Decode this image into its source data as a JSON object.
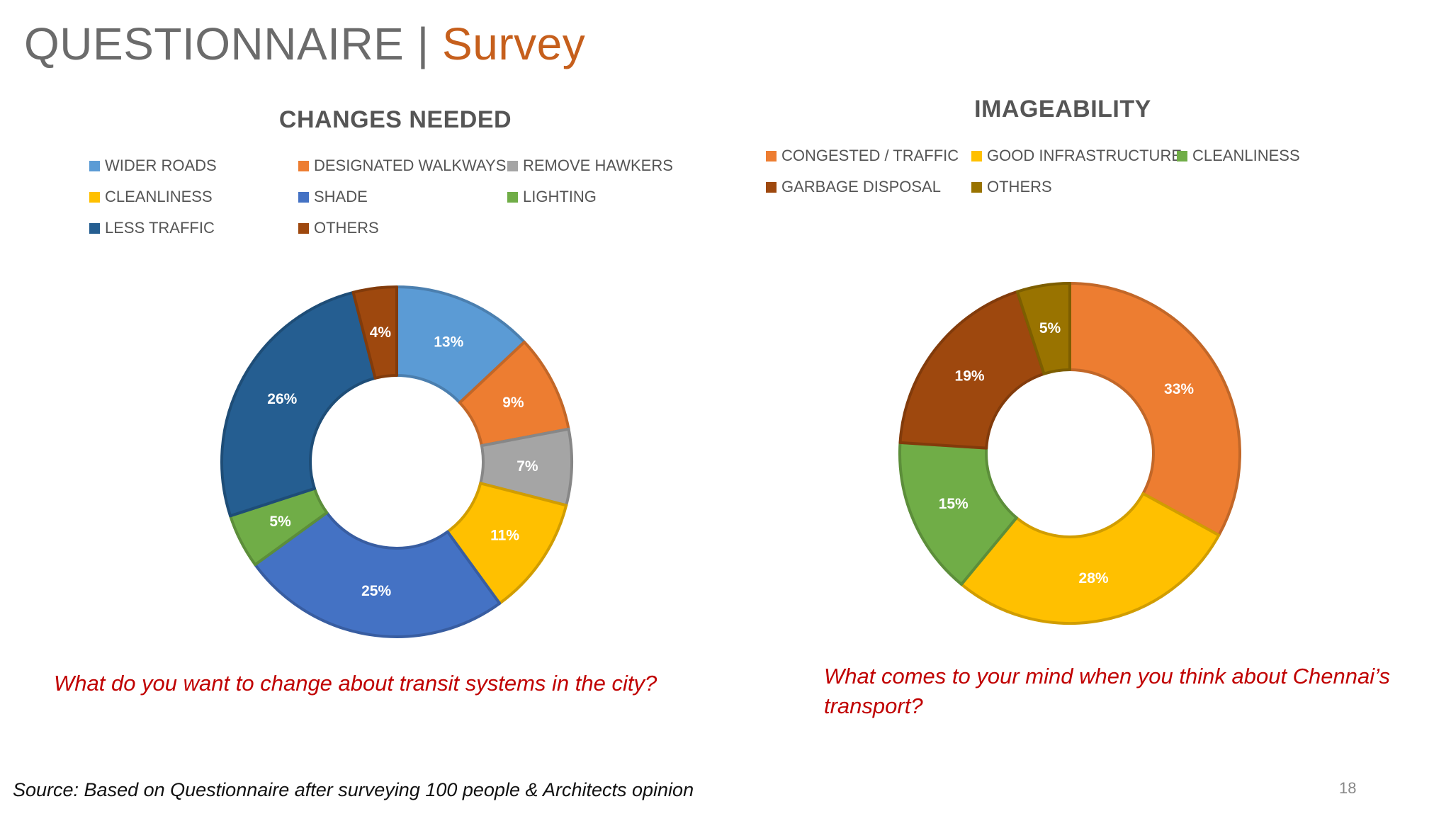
{
  "slide": {
    "title_main": "QUESTIONNAIRE",
    "title_sep": "|",
    "title_accent": "Survey",
    "source": "Source: Based on Questionnaire after surveying 100 people & Architects opinion",
    "page_number": "18"
  },
  "chart_data": [
    {
      "type": "pie",
      "title": "CHANGES NEEDED",
      "question": "What do you want to change about transit systems in the city?",
      "categories": [
        "WIDER ROADS",
        "DESIGNATED WALKWAYS",
        "REMOVE HAWKERS",
        "CLEANLINESS",
        "SHADE",
        "LIGHTING",
        "LESS TRAFFIC",
        "OTHERS"
      ],
      "values": [
        13,
        9,
        7,
        11,
        25,
        5,
        26,
        4
      ],
      "labels": [
        "13%",
        "9%",
        "7%",
        "11%",
        "25%",
        "5%",
        "26%",
        "4%"
      ],
      "colors": [
        "#5b9bd5",
        "#ed7d31",
        "#a5a5a5",
        "#ffc000",
        "#4472c4",
        "#70ad47",
        "#255e91",
        "#9e480e"
      ],
      "legend_position": "top"
    },
    {
      "type": "pie",
      "title": "IMAGEABILITY",
      "question": "What comes to your mind when you think about Chennai’s transport?",
      "categories": [
        "CONGESTED / TRAFFIC",
        "GOOD INFRASTRUCTURE",
        "CLEANLINESS",
        "GARBAGE DISPOSAL",
        "OTHERS"
      ],
      "values": [
        33,
        28,
        15,
        19,
        5
      ],
      "labels": [
        "33%",
        "28%",
        "15%",
        "19%",
        "5%"
      ],
      "colors": [
        "#ed7d31",
        "#ffc000",
        "#70ad47",
        "#9e480e",
        "#997300"
      ],
      "legend_position": "top"
    }
  ]
}
